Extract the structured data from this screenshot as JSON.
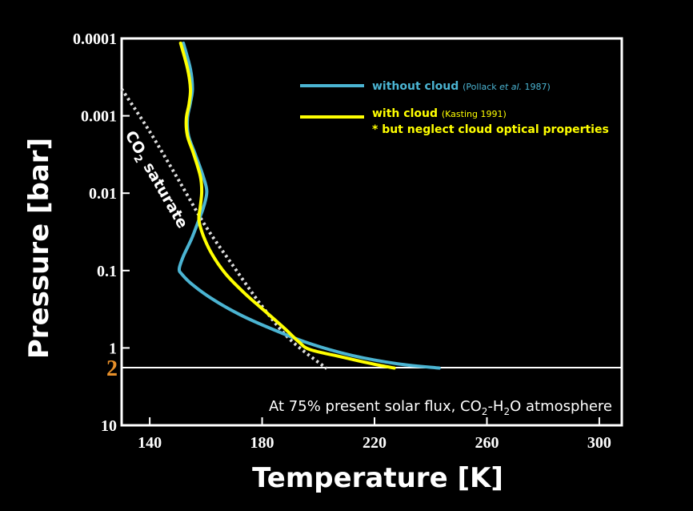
{
  "chart_data": {
    "type": "line",
    "xlabel": "Temperature [K]",
    "ylabel": "Pressure [bar]",
    "xlim": [
      130,
      308
    ],
    "ylim": [
      0.0001,
      10
    ],
    "y_scale": "log",
    "y_inverted": true,
    "grid": false,
    "x_ticks": [
      140,
      180,
      220,
      260,
      300
    ],
    "y_ticks": [
      {
        "value": 0.0001,
        "label": "0.0001"
      },
      {
        "value": 0.001,
        "label": "0.001"
      },
      {
        "value": 0.01,
        "label": "0.01"
      },
      {
        "value": 0.1,
        "label": "0.1"
      },
      {
        "value": 1,
        "label": "1"
      },
      {
        "value": 10,
        "label": "10"
      }
    ],
    "series": [
      {
        "name": "without cloud",
        "source_prefix": "(Pollack ",
        "source_italic": "et al.",
        "source_suffix": " 1987)",
        "color": "#4bb4d2",
        "points": [
          [
            152,
            0.000115
          ],
          [
            154.5,
            0.00025
          ],
          [
            155.2,
            0.00045
          ],
          [
            154.4,
            0.0007
          ],
          [
            153.4,
            0.0011
          ],
          [
            153.8,
            0.0018
          ],
          [
            156,
            0.003
          ],
          [
            159,
            0.006
          ],
          [
            160.3,
            0.0095
          ],
          [
            159.2,
            0.015
          ],
          [
            157.5,
            0.022
          ],
          [
            155,
            0.038
          ],
          [
            152,
            0.065
          ],
          [
            150.5,
            0.095
          ],
          [
            151.5,
            0.112
          ],
          [
            155,
            0.15
          ],
          [
            162,
            0.23
          ],
          [
            172,
            0.37
          ],
          [
            184,
            0.58
          ],
          [
            197,
            0.88
          ],
          [
            212,
            1.25
          ],
          [
            228,
            1.6
          ],
          [
            243,
            1.82
          ]
        ]
      },
      {
        "name": "with cloud",
        "source": "(Kasting 1991)",
        "note": "* but neglect cloud optical properties",
        "color": "#ffff00",
        "points": [
          [
            151,
            0.000115
          ],
          [
            153.5,
            0.00025
          ],
          [
            154.5,
            0.00045
          ],
          [
            154,
            0.0007
          ],
          [
            153,
            0.0011
          ],
          [
            153.4,
            0.0018
          ],
          [
            155.5,
            0.003
          ],
          [
            158,
            0.006
          ],
          [
            158.5,
            0.0095
          ],
          [
            158,
            0.015
          ],
          [
            157.5,
            0.022
          ],
          [
            159,
            0.035
          ],
          [
            162,
            0.06
          ],
          [
            167,
            0.11
          ],
          [
            174,
            0.2
          ],
          [
            182,
            0.36
          ],
          [
            188,
            0.56
          ],
          [
            193,
            0.83
          ],
          [
            197,
            1.05
          ],
          [
            208,
            1.3
          ],
          [
            219,
            1.6
          ],
          [
            227,
            1.82
          ]
        ]
      }
    ],
    "reference_curve": {
      "label_main": "CO",
      "label_sub": "2",
      "label_rest": " saturate",
      "color": "#dddddd",
      "style": "dotted",
      "points": [
        [
          130,
          0.00045
        ],
        [
          140,
          0.0016
        ],
        [
          150,
          0.0065
        ],
        [
          160,
          0.027
        ],
        [
          170,
          0.09
        ],
        [
          180,
          0.29
        ],
        [
          190,
          0.78
        ],
        [
          203,
          1.85
        ]
      ]
    },
    "surface": {
      "value": 1.8,
      "label": "2",
      "label_color": "#e8902a"
    },
    "annotation": {
      "prefix": "At 75% present solar flux, CO",
      "sub1": "2",
      "mid": "-H",
      "sub2": "2",
      "suffix": "O atmosphere"
    }
  }
}
